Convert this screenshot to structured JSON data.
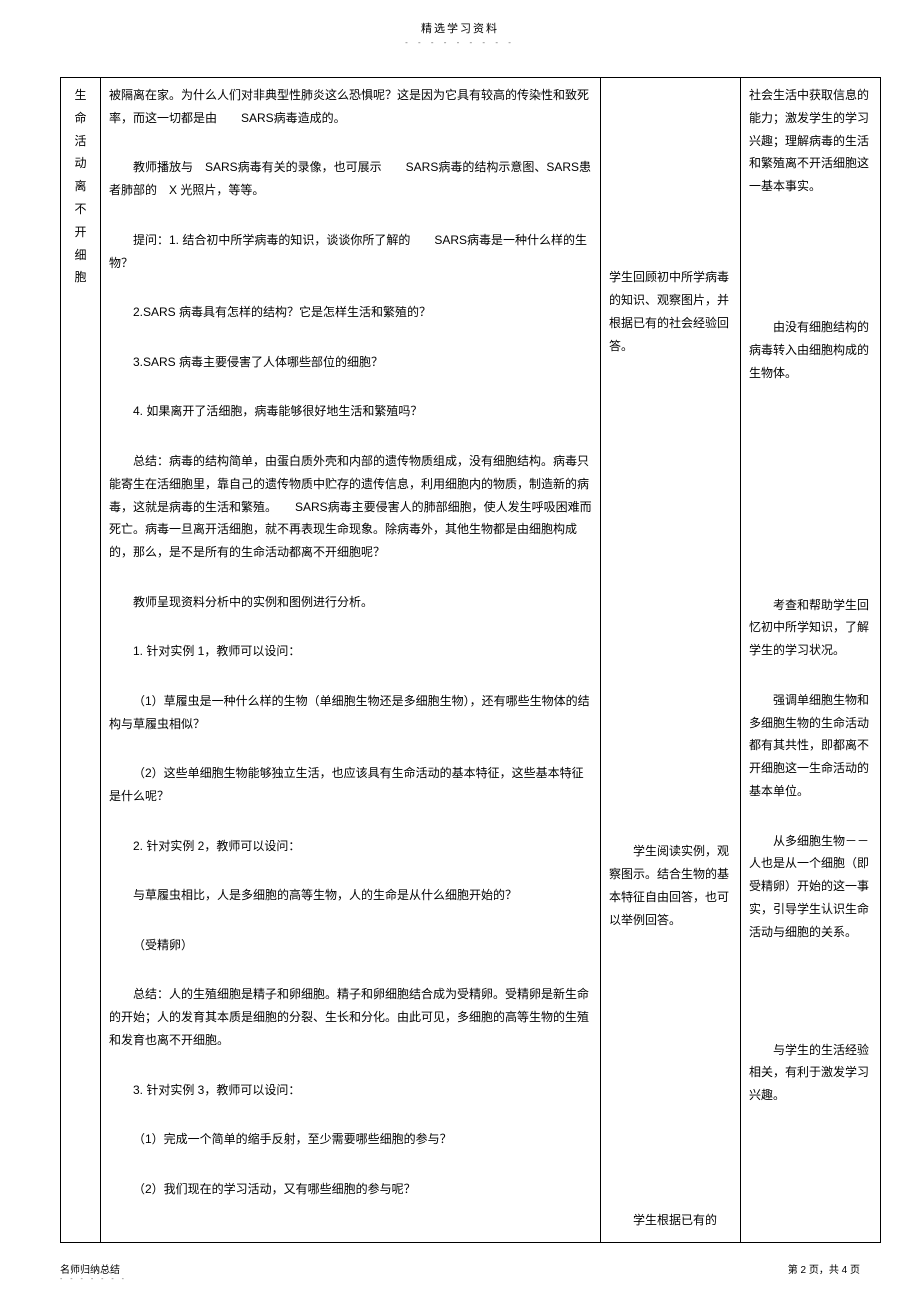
{
  "header": {
    "title": "精选学习资料",
    "dots": "- - - - - - - - -"
  },
  "rowLabel": "生命活动离不开细胞",
  "mainContent": {
    "p1": "被隔离在家。为什么人们对非典型性肺炎这么恐惧呢？这是因为它具有较高的传染性和致死率，而这一切都是由　　SARS病毒造成的。",
    "p2": "教师播放与　SARS病毒有关的录像，也可展示　　SARS病毒的结构示意图、SARS患者肺部的　X 光照片，等等。",
    "p3": "提问：1. 结合初中所学病毒的知识，谈谈你所了解的　　SARS病毒是一种什么样的生物？",
    "p4": "2.SARS 病毒具有怎样的结构？它是怎样生活和繁殖的？",
    "p5": "3.SARS 病毒主要侵害了人体哪些部位的细胞？",
    "p6": "4. 如果离开了活细胞，病毒能够很好地生活和繁殖吗？",
    "p7": "总结：病毒的结构简单，由蛋白质外壳和内部的遗传物质组成，没有细胞结构。病毒只能寄生在活细胞里，靠自己的遗传物质中贮存的遗传信息，利用细胞内的物质，制造新的病毒，这就是病毒的生活和繁殖。　　SARS病毒主要侵害人的肺部细胞，使人发生呼吸困难而死亡。病毒一旦离开活细胞，就不再表现生命现象。除病毒外，其他生物都是由细胞构成的，那么，是不是所有的生命活动都离不开细胞呢？",
    "p8": "教师呈现资料分析中的实例和图例进行分析。",
    "p9": "1. 针对实例  1，教师可以设问：",
    "p10": "（1）草履虫是一种什么样的生物（单细胞生物还是多细胞生物），还有哪些生物体的结构与草履虫相似？",
    "p11": "（2）这些单细胞生物能够独立生活，也应该具有生命活动的基本特征，这些基本特征是什么呢？",
    "p12": "2. 针对实例  2，教师可以设问：",
    "p13": "与草履虫相比，人是多细胞的高等生物，人的生命是从什么细胞开始的？",
    "p14": "（受精卵）",
    "p15": "总结：人的生殖细胞是精子和卵细胞。精子和卵细胞结合成为受精卵。受精卵是新生命的开始；人的发育其本质是细胞的分裂、生长和分化。由此可见，多细胞的高等生物的生殖和发育也离不开细胞。",
    "p16": "3. 针对实例  3，教师可以设问：",
    "p17": "（1）完成一个简单的缩手反射，至少需要哪些细胞的参与？",
    "p18": "（2）我们现在的学习活动，又有哪些细胞的参与呢？"
  },
  "studentContent": {
    "s1": "学生回顾初中所学病毒的知识、观察图片，并根据已有的社会经验回答。",
    "s2": "学生阅读实例，观察图示。结合生物的基本特征自由回答，也可以举例回答。",
    "s3": "学生根据已有的"
  },
  "purposeContent": {
    "u1": "社会生活中获取信息的能力；激发学生的学习兴趣；理解病毒的生活和繁殖离不开活细胞这一基本事实。",
    "u2": "由没有细胞结构的病毒转入由细胞构成的生物体。",
    "u3": "考查和帮助学生回忆初中所学知识，了解学生的学习状况。",
    "u4": "强调单细胞生物和多细胞生物的生命活动都有其共性，即都离不开细胞这一生命活动的基本单位。",
    "u5": "从多细胞生物－－人也是从一个细胞（即受精卵）开始的这一事实，引导学生认识生命活动与细胞的关系。",
    "u6": "与学生的生活经验相关，有利于激发学习兴趣。"
  },
  "footer": {
    "leftTitle": "名师归纳总结",
    "leftDots": "- - - - - - -",
    "right": "第 2 页，共 4 页"
  }
}
